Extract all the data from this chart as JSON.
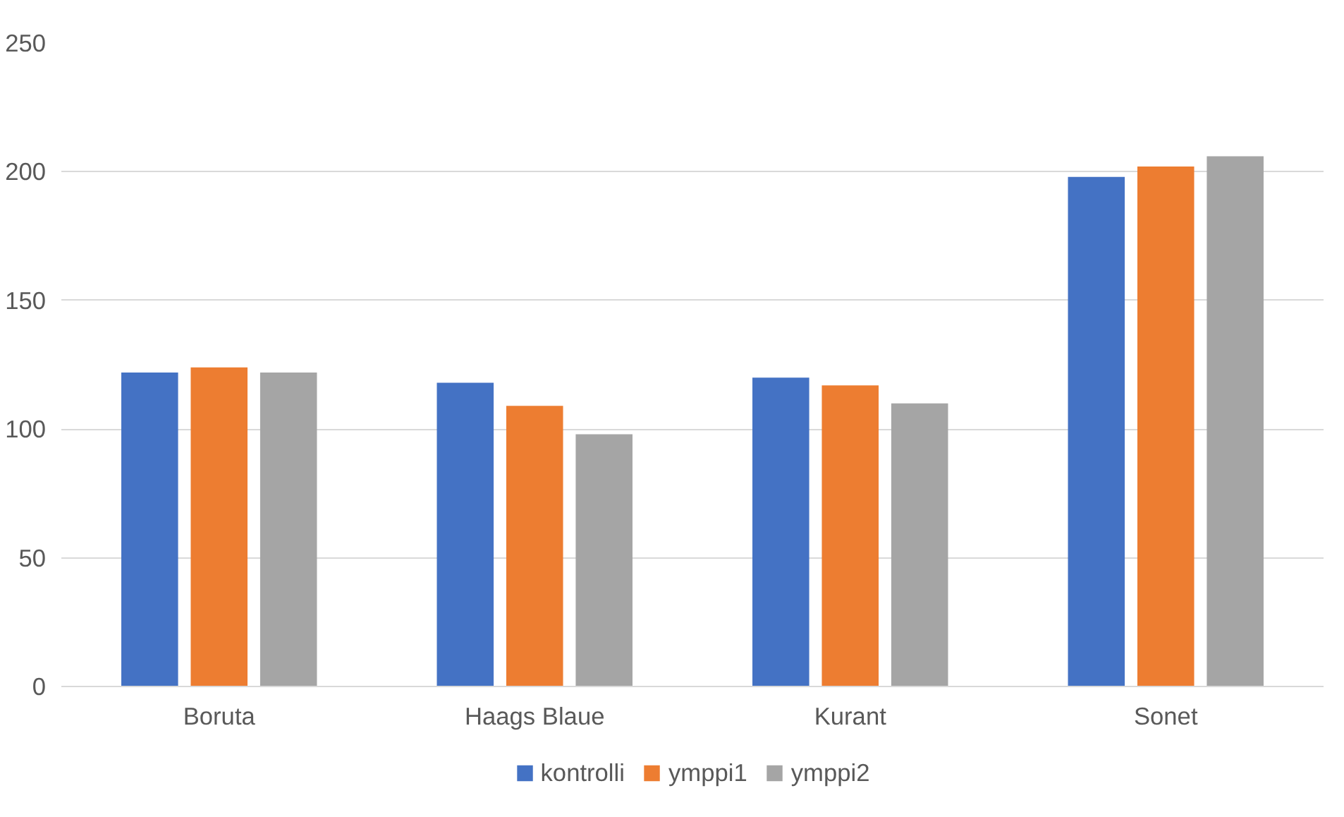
{
  "chart_data": {
    "type": "bar",
    "categories": [
      "Boruta",
      "Haags Blaue",
      "Kurant",
      "Sonet"
    ],
    "series": [
      {
        "name": "kontrolli",
        "color": "#4472c4",
        "values": [
          122,
          118,
          120,
          198
        ]
      },
      {
        "name": "ymppi1",
        "color": "#ed7d31",
        "values": [
          124,
          109,
          117,
          202
        ]
      },
      {
        "name": "ymppi2",
        "color": "#a5a5a5",
        "values": [
          122,
          98,
          110,
          206
        ]
      }
    ],
    "ylim": [
      0,
      250
    ],
    "yticks": [
      0,
      50,
      100,
      150,
      200,
      250
    ],
    "grid": "y",
    "legend": "bottom"
  }
}
